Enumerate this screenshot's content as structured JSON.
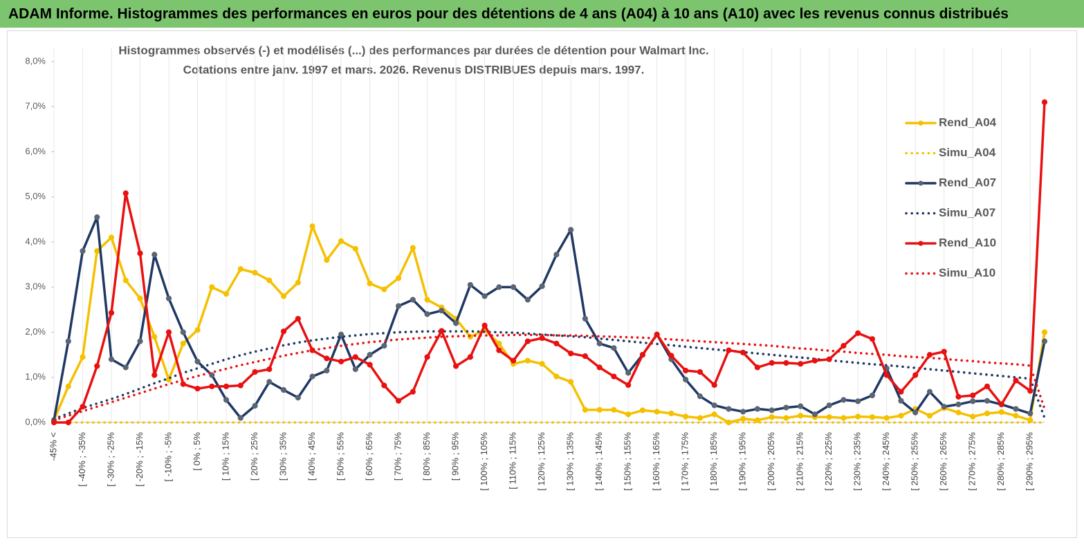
{
  "header": {
    "title": "ADAM Informe. Histogrammes des performances en euros pour des détentions de 4 ans (A04) à 10 ans (A10) avec les revenus connus distribués"
  },
  "chart_data": {
    "type": "line",
    "title": "Histogrammes observés (-) et modélisés (...) des performances par durées de détention pour Walmart Inc.",
    "subtitle": "Cotations entre janv. 1997 et mars. 2026. Revenus DISTRIBUES depuis mars. 1997.",
    "categories": [
      "-45% <",
      null,
      "[ -40% ; -35%",
      null,
      "[ -30% ; -25%",
      null,
      "[ -20% ; -15%",
      null,
      "[ -10% ; -5%",
      null,
      "[ 0% ; 5%",
      null,
      "[ 10% ; 15%",
      null,
      "[ 20% ; 25%",
      null,
      "[ 30% ; 35%",
      null,
      "[ 40% ; 45%",
      null,
      "[ 50% ; 55%",
      null,
      "[ 60% ; 65%",
      null,
      "[ 70% ; 75%",
      null,
      "[ 80% ; 85%",
      null,
      "[ 90% ; 95%",
      null,
      "[ 100% ; 105%",
      null,
      "[ 110% ; 115%",
      null,
      "[ 120% ; 125%",
      null,
      "[ 130% ; 135%",
      null,
      "[ 140% ; 145%",
      null,
      "[ 150% ; 155%",
      null,
      "[ 160% ; 165%",
      null,
      "[ 170% ; 175%",
      null,
      "[ 180% ; 185%",
      null,
      "[ 190% ; 195%",
      null,
      "[ 200% ; 205%",
      null,
      "[ 210% ; 215%",
      null,
      "[ 220% ; 225%",
      null,
      "[ 230% ; 235%",
      null,
      "[ 240% ; 245%",
      null,
      "[ 250% ; 255%",
      null,
      "[ 260% ; 265%",
      null,
      "[ 270% ; 275%",
      null,
      "[ 280% ; 285%",
      null,
      "[ 290% ; 295%",
      null
    ],
    "ylim": [
      0,
      8
    ],
    "yticks": [
      {
        "value": 0,
        "label": "0,0%"
      },
      {
        "value": 1,
        "label": "1,0%"
      },
      {
        "value": 2,
        "label": "2,0%"
      },
      {
        "value": 3,
        "label": "3,0%"
      },
      {
        "value": 4,
        "label": "4,0%"
      },
      {
        "value": 5,
        "label": "5,0%"
      },
      {
        "value": 6,
        "label": "6,0%"
      },
      {
        "value": 7,
        "label": "7,0%"
      },
      {
        "value": 8,
        "label": "8,0%"
      }
    ],
    "grid": true,
    "legend": "right",
    "series": [
      {
        "name": "Rend_A04",
        "color": "#f5c000",
        "dash": "solid",
        "markers": true,
        "marker_color": "#f5c000",
        "values": [
          0.05,
          0.8,
          1.45,
          3.8,
          4.1,
          3.15,
          2.75,
          1.9,
          0.95,
          1.75,
          2.05,
          3.0,
          2.85,
          3.4,
          3.32,
          3.15,
          2.8,
          3.1,
          4.35,
          3.6,
          4.02,
          3.85,
          3.08,
          2.95,
          3.2,
          3.87,
          2.72,
          2.55,
          2.3,
          1.9,
          2.05,
          1.75,
          1.3,
          1.37,
          1.3,
          1.02,
          0.9,
          0.28,
          0.28,
          0.28,
          0.18,
          0.27,
          0.24,
          0.2,
          0.13,
          0.1,
          0.18,
          0.0,
          0.08,
          0.05,
          0.12,
          0.1,
          0.15,
          0.12,
          0.12,
          0.1,
          0.13,
          0.12,
          0.1,
          0.15,
          0.3,
          0.15,
          0.32,
          0.22,
          0.13,
          0.2,
          0.23,
          0.15,
          0.05,
          2.0
        ]
      },
      {
        "name": "Simu_A04",
        "color": "#f5c000",
        "dash": "dotted",
        "markers": false,
        "values": [
          0,
          0,
          0,
          0,
          0,
          0,
          0,
          0,
          0,
          0,
          0,
          0,
          0,
          0,
          0,
          0,
          0,
          0,
          0,
          0,
          0,
          0,
          0,
          0,
          0,
          0,
          0,
          0,
          0,
          0,
          0,
          0,
          0,
          0,
          0,
          0,
          0,
          0,
          0,
          0,
          0,
          0,
          0,
          0,
          0,
          0,
          0,
          0,
          0,
          0,
          0,
          0,
          0,
          0,
          0,
          0,
          0,
          0,
          0,
          0,
          0,
          0,
          0,
          0,
          0,
          0,
          0,
          0,
          0,
          0
        ]
      },
      {
        "name": "Rend_A07",
        "color": "#1f3864",
        "dash": "solid",
        "markers": true,
        "marker_color": "#5a6473",
        "values": [
          0.05,
          1.8,
          3.8,
          4.55,
          1.4,
          1.22,
          1.8,
          3.72,
          2.75,
          2.0,
          1.35,
          1.05,
          0.5,
          0.1,
          0.37,
          0.9,
          0.72,
          0.55,
          1.02,
          1.15,
          1.95,
          1.18,
          1.5,
          1.7,
          2.58,
          2.72,
          2.4,
          2.48,
          2.2,
          3.05,
          2.8,
          3.0,
          3.0,
          2.72,
          3.02,
          3.72,
          4.27,
          2.3,
          1.75,
          1.65,
          1.1,
          1.5,
          1.95,
          1.4,
          0.95,
          0.58,
          0.38,
          0.3,
          0.24,
          0.3,
          0.27,
          0.33,
          0.36,
          0.18,
          0.38,
          0.5,
          0.47,
          0.6,
          1.2,
          0.48,
          0.22,
          0.68,
          0.35,
          0.4,
          0.47,
          0.48,
          0.4,
          0.3,
          0.2,
          1.8
        ]
      },
      {
        "name": "Simu_A07",
        "color": "#1f3864",
        "dash": "dotted",
        "markers": false,
        "values": [
          0.08,
          0.2,
          0.32,
          0.42,
          0.52,
          0.63,
          0.75,
          0.87,
          0.98,
          1.1,
          1.2,
          1.3,
          1.4,
          1.49,
          1.57,
          1.64,
          1.71,
          1.77,
          1.82,
          1.86,
          1.9,
          1.93,
          1.96,
          1.98,
          2.0,
          2.01,
          2.02,
          2.02,
          2.02,
          2.02,
          2.01,
          2.0,
          1.99,
          1.97,
          1.95,
          1.93,
          1.91,
          1.89,
          1.86,
          1.83,
          1.8,
          1.77,
          1.74,
          1.71,
          1.68,
          1.65,
          1.62,
          1.59,
          1.56,
          1.53,
          1.5,
          1.47,
          1.44,
          1.41,
          1.38,
          1.35,
          1.32,
          1.29,
          1.27,
          1.24,
          1.21,
          1.18,
          1.15,
          1.12,
          1.09,
          1.06,
          1.03,
          1.0,
          0.97,
          0.1
        ]
      },
      {
        "name": "Rend_A10",
        "color": "#e81010",
        "dash": "solid",
        "markers": true,
        "marker_color": "#e81010",
        "values": [
          0.0,
          0.0,
          0.35,
          1.25,
          2.43,
          5.08,
          3.75,
          1.05,
          2.0,
          0.85,
          0.75,
          0.8,
          0.8,
          0.82,
          1.12,
          1.18,
          2.02,
          2.3,
          1.6,
          1.42,
          1.35,
          1.45,
          1.28,
          0.82,
          0.48,
          0.68,
          1.45,
          2.03,
          1.25,
          1.45,
          2.15,
          1.6,
          1.37,
          1.8,
          1.87,
          1.75,
          1.53,
          1.47,
          1.22,
          1.02,
          0.83,
          1.5,
          1.95,
          1.48,
          1.15,
          1.12,
          0.83,
          1.6,
          1.55,
          1.22,
          1.32,
          1.32,
          1.3,
          1.37,
          1.4,
          1.7,
          1.98,
          1.85,
          1.05,
          0.68,
          1.05,
          1.5,
          1.57,
          0.57,
          0.6,
          0.8,
          0.4,
          0.93,
          0.7,
          7.1
        ]
      },
      {
        "name": "Simu_A10",
        "color": "#e81010",
        "dash": "dotted",
        "markers": false,
        "values": [
          0.05,
          0.15,
          0.25,
          0.35,
          0.45,
          0.55,
          0.65,
          0.75,
          0.85,
          0.94,
          1.03,
          1.11,
          1.19,
          1.27,
          1.34,
          1.41,
          1.48,
          1.54,
          1.6,
          1.65,
          1.7,
          1.74,
          1.78,
          1.81,
          1.84,
          1.86,
          1.88,
          1.9,
          1.91,
          1.92,
          1.93,
          1.93,
          1.94,
          1.94,
          1.94,
          1.93,
          1.93,
          1.92,
          1.91,
          1.9,
          1.89,
          1.88,
          1.86,
          1.84,
          1.82,
          1.8,
          1.78,
          1.76,
          1.74,
          1.72,
          1.7,
          1.67,
          1.64,
          1.62,
          1.59,
          1.57,
          1.54,
          1.52,
          1.5,
          1.47,
          1.45,
          1.43,
          1.41,
          1.38,
          1.36,
          1.33,
          1.31,
          1.29,
          1.26,
          0.3
        ]
      }
    ]
  }
}
